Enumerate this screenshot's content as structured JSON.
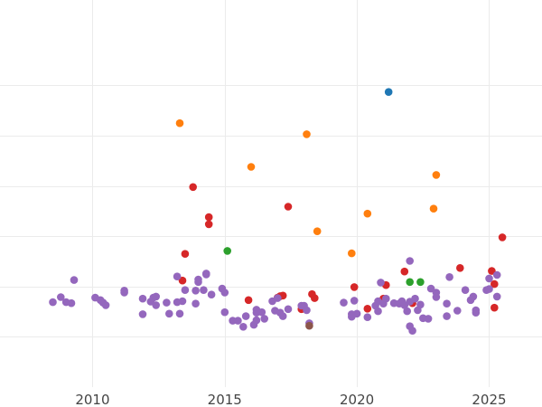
{
  "chart_data": {
    "type": "scatter",
    "title": "",
    "xlabel": "",
    "ylabel": "",
    "xlim": [
      2006.5,
      2027
    ],
    "ylim": [
      0,
      7.7
    ],
    "grid": true,
    "show_y_tick_labels": false,
    "x_ticks": [
      2010,
      2015,
      2020,
      2025
    ],
    "x_tick_labels": [
      "2010",
      "2015",
      "2020",
      "2025"
    ],
    "y_gridlines": [
      1,
      2,
      3,
      4,
      5,
      6
    ],
    "colors": {
      "blue": "#1f77b4",
      "orange": "#ff7f0e",
      "green": "#2ca02c",
      "red": "#d62728",
      "purple": "#9467bd",
      "brown": "#8c564b"
    },
    "series": [
      {
        "name": "blue",
        "color": "#1f77b4",
        "points": [
          [
            2021.2,
            5.87
          ]
        ]
      },
      {
        "name": "orange",
        "color": "#ff7f0e",
        "points": [
          [
            2013.3,
            5.25
          ],
          [
            2018.1,
            5.03
          ],
          [
            2016.0,
            4.38
          ],
          [
            2023.0,
            4.22
          ],
          [
            2020.4,
            3.45
          ],
          [
            2022.9,
            3.55
          ],
          [
            2018.5,
            3.1
          ],
          [
            2019.8,
            2.66
          ]
        ]
      },
      {
        "name": "green",
        "color": "#2ca02c",
        "points": [
          [
            2015.1,
            2.71
          ],
          [
            2022.0,
            2.09
          ],
          [
            2022.4,
            2.09
          ]
        ]
      },
      {
        "name": "red",
        "color": "#d62728",
        "points": [
          [
            2013.8,
            3.98
          ],
          [
            2014.4,
            3.38
          ],
          [
            2014.4,
            3.24
          ],
          [
            2017.4,
            3.59
          ],
          [
            2013.5,
            2.65
          ],
          [
            2013.4,
            2.12
          ],
          [
            2015.9,
            1.73
          ],
          [
            2017.0,
            1.78
          ],
          [
            2017.1,
            1.81
          ],
          [
            2017.2,
            1.82
          ],
          [
            2017.9,
            1.55
          ],
          [
            2018.3,
            1.85
          ],
          [
            2018.4,
            1.77
          ],
          [
            2019.9,
            1.99
          ],
          [
            2020.4,
            1.56
          ],
          [
            2021.1,
            2.03
          ],
          [
            2021.0,
            1.76
          ],
          [
            2021.8,
            2.3
          ],
          [
            2022.1,
            1.67
          ],
          [
            2023.9,
            2.37
          ],
          [
            2025.1,
            2.31
          ],
          [
            2025.2,
            2.05
          ],
          [
            2025.5,
            2.98
          ],
          [
            2025.2,
            1.58
          ]
        ]
      },
      {
        "name": "purple",
        "color": "#9467bd",
        "points": [
          [
            2008.5,
            1.69
          ],
          [
            2008.8,
            1.79
          ],
          [
            2009.0,
            1.69
          ],
          [
            2009.2,
            1.67
          ],
          [
            2009.3,
            2.13
          ],
          [
            2010.1,
            1.78
          ],
          [
            2010.3,
            1.73
          ],
          [
            2010.4,
            1.68
          ],
          [
            2010.5,
            1.63
          ],
          [
            2011.2,
            1.92
          ],
          [
            2011.2,
            1.88
          ],
          [
            2011.9,
            1.76
          ],
          [
            2011.9,
            1.45
          ],
          [
            2012.2,
            1.7
          ],
          [
            2012.3,
            1.78
          ],
          [
            2012.4,
            1.8
          ],
          [
            2012.4,
            1.63
          ],
          [
            2012.8,
            1.68
          ],
          [
            2012.9,
            1.46
          ],
          [
            2013.2,
            1.69
          ],
          [
            2013.3,
            1.46
          ],
          [
            2013.4,
            1.71
          ],
          [
            2013.2,
            2.2
          ],
          [
            2013.5,
            1.93
          ],
          [
            2013.9,
            1.92
          ],
          [
            2013.9,
            1.66
          ],
          [
            2014.0,
            2.09
          ],
          [
            2014.0,
            2.14
          ],
          [
            2014.2,
            1.93
          ],
          [
            2014.3,
            2.24
          ],
          [
            2014.3,
            2.26
          ],
          [
            2014.5,
            1.84
          ],
          [
            2014.9,
            1.96
          ],
          [
            2015.0,
            1.88
          ],
          [
            2015.0,
            1.49
          ],
          [
            2015.3,
            1.32
          ],
          [
            2015.5,
            1.32
          ],
          [
            2015.7,
            1.2
          ],
          [
            2015.8,
            1.41
          ],
          [
            2016.1,
            1.24
          ],
          [
            2016.2,
            1.54
          ],
          [
            2016.2,
            1.48
          ],
          [
            2016.2,
            1.33
          ],
          [
            2016.4,
            1.49
          ],
          [
            2016.5,
            1.36
          ],
          [
            2016.8,
            1.71
          ],
          [
            2016.9,
            1.52
          ],
          [
            2017.0,
            1.77
          ],
          [
            2017.1,
            1.48
          ],
          [
            2017.2,
            1.41
          ],
          [
            2017.4,
            1.55
          ],
          [
            2017.9,
            1.62
          ],
          [
            2018.0,
            1.62
          ],
          [
            2018.1,
            1.53
          ],
          [
            2018.2,
            1.27
          ],
          [
            2019.5,
            1.68
          ],
          [
            2019.8,
            1.4
          ],
          [
            2019.8,
            1.45
          ],
          [
            2019.9,
            1.72
          ],
          [
            2020.0,
            1.46
          ],
          [
            2020.4,
            1.39
          ],
          [
            2020.7,
            1.62
          ],
          [
            2020.8,
            1.71
          ],
          [
            2020.8,
            1.51
          ],
          [
            2020.9,
            2.08
          ],
          [
            2021.0,
            1.66
          ],
          [
            2021.1,
            1.76
          ],
          [
            2021.4,
            1.67
          ],
          [
            2021.6,
            1.66
          ],
          [
            2021.7,
            1.71
          ],
          [
            2021.8,
            1.63
          ],
          [
            2021.9,
            1.51
          ],
          [
            2022.0,
            1.7
          ],
          [
            2022.0,
            1.21
          ],
          [
            2022.0,
            2.51
          ],
          [
            2022.1,
            1.12
          ],
          [
            2022.2,
            1.76
          ],
          [
            2022.3,
            1.53
          ],
          [
            2022.4,
            1.64
          ],
          [
            2022.5,
            1.37
          ],
          [
            2022.7,
            1.36
          ],
          [
            2022.8,
            1.96
          ],
          [
            2023.0,
            1.79
          ],
          [
            2023.0,
            1.88
          ],
          [
            2023.4,
            1.66
          ],
          [
            2023.4,
            1.41
          ],
          [
            2023.5,
            2.19
          ],
          [
            2023.8,
            1.52
          ],
          [
            2024.1,
            1.93
          ],
          [
            2024.3,
            1.73
          ],
          [
            2024.4,
            1.8
          ],
          [
            2024.5,
            1.53
          ],
          [
            2024.5,
            1.48
          ],
          [
            2024.9,
            1.93
          ],
          [
            2025.0,
            1.95
          ],
          [
            2025.0,
            2.16
          ],
          [
            2025.3,
            2.23
          ],
          [
            2025.3,
            1.8
          ]
        ]
      },
      {
        "name": "brown",
        "color": "#8c564b",
        "points": [
          [
            2018.2,
            1.22
          ]
        ]
      }
    ]
  }
}
